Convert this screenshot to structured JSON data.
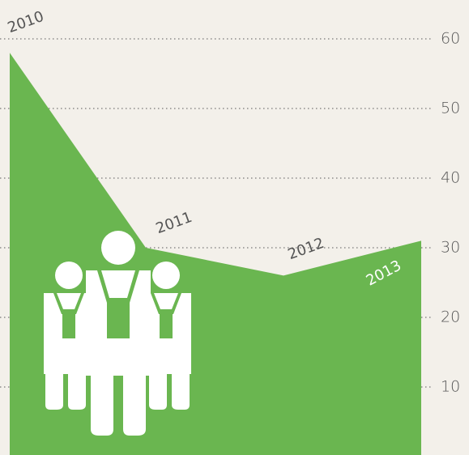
{
  "chart_data": {
    "type": "area",
    "categories": [
      "2010",
      "2011",
      "2012",
      "2013"
    ],
    "values": [
      58,
      30,
      26,
      31
    ],
    "color": "#6ab650",
    "ylim": [
      0,
      60
    ],
    "yticks": [
      10,
      20,
      30,
      40,
      50,
      60
    ],
    "grid": true
  }
}
